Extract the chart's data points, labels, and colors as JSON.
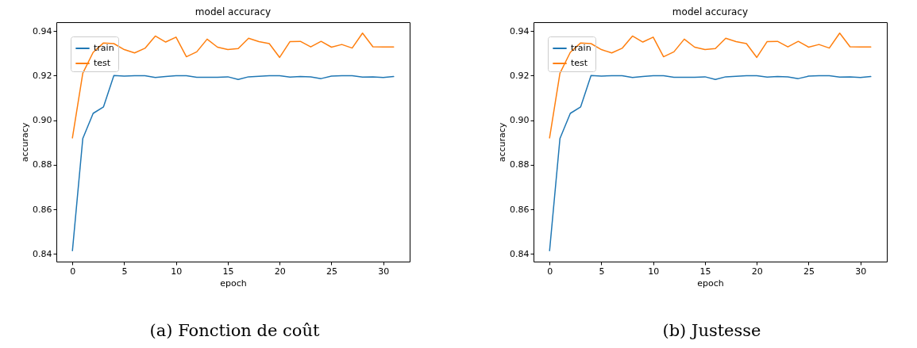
{
  "chart_data": [
    {
      "type": "line",
      "title": "model accuracy",
      "xlabel": "epoch",
      "ylabel": "accuracy",
      "annotations": [
        "(a) Fonction de coût"
      ],
      "x": [
        0,
        1,
        2,
        3,
        4,
        5,
        6,
        7,
        8,
        9,
        10,
        11,
        12,
        13,
        14,
        15,
        16,
        17,
        18,
        19,
        20,
        21,
        22,
        23,
        24,
        25,
        26,
        27,
        28,
        29,
        30,
        31
      ],
      "series": [
        {
          "name": "train",
          "color": "#1f77b4",
          "values": [
            0.8415,
            0.8918,
            0.9031,
            0.906,
            0.9201,
            0.9198,
            0.92,
            0.92,
            0.9192,
            0.9196,
            0.92,
            0.92,
            0.9193,
            0.9193,
            0.9193,
            0.9195,
            0.9183,
            0.9195,
            0.9197,
            0.92,
            0.92,
            0.9194,
            0.9196,
            0.9195,
            0.9187,
            0.9198,
            0.92,
            0.92,
            0.9194,
            0.9195,
            0.9192,
            0.9196
          ]
        },
        {
          "name": "test",
          "color": "#ff7f0e",
          "values": [
            0.8921,
            0.9211,
            0.9305,
            0.9347,
            0.9344,
            0.9317,
            0.9302,
            0.9323,
            0.9378,
            0.9351,
            0.9373,
            0.9285,
            0.9307,
            0.9364,
            0.9328,
            0.9317,
            0.9322,
            0.9368,
            0.9353,
            0.9344,
            0.9282,
            0.9353,
            0.9354,
            0.9329,
            0.9354,
            0.9328,
            0.934,
            0.9324,
            0.9391,
            0.933,
            0.9329,
            0.9329
          ]
        }
      ],
      "xlim": [
        -1.55,
        32.55
      ],
      "xticks": [
        0,
        5,
        10,
        15,
        20,
        25,
        30
      ],
      "ylim": [
        0.8366,
        0.944
      ],
      "yticks": [
        {
          "value": 0.84,
          "label": "0.84"
        },
        {
          "value": 0.86,
          "label": "0.86"
        },
        {
          "value": 0.88,
          "label": "0.88"
        },
        {
          "value": 0.9,
          "label": "0.90"
        },
        {
          "value": 0.92,
          "label": "0.92"
        },
        {
          "value": 0.94,
          "label": "0.94"
        }
      ],
      "legend": "top left"
    },
    {
      "type": "line",
      "title": "model accuracy",
      "xlabel": "epoch",
      "ylabel": "accuracy",
      "annotations": [
        "(b) Justesse"
      ],
      "x": [
        0,
        1,
        2,
        3,
        4,
        5,
        6,
        7,
        8,
        9,
        10,
        11,
        12,
        13,
        14,
        15,
        16,
        17,
        18,
        19,
        20,
        21,
        22,
        23,
        24,
        25,
        26,
        27,
        28,
        29,
        30,
        31
      ],
      "series": [
        {
          "name": "train",
          "color": "#1f77b4",
          "values": [
            0.8415,
            0.8918,
            0.9031,
            0.906,
            0.9201,
            0.9198,
            0.92,
            0.92,
            0.9192,
            0.9196,
            0.92,
            0.92,
            0.9193,
            0.9193,
            0.9193,
            0.9195,
            0.9183,
            0.9195,
            0.9197,
            0.92,
            0.92,
            0.9194,
            0.9196,
            0.9195,
            0.9187,
            0.9198,
            0.92,
            0.92,
            0.9194,
            0.9195,
            0.9192,
            0.9196
          ]
        },
        {
          "name": "test",
          "color": "#ff7f0e",
          "values": [
            0.8921,
            0.9211,
            0.9305,
            0.9347,
            0.9344,
            0.9317,
            0.9302,
            0.9323,
            0.9378,
            0.9351,
            0.9373,
            0.9285,
            0.9307,
            0.9364,
            0.9328,
            0.9317,
            0.9322,
            0.9368,
            0.9353,
            0.9344,
            0.9282,
            0.9353,
            0.9354,
            0.9329,
            0.9354,
            0.9328,
            0.934,
            0.9324,
            0.9391,
            0.933,
            0.9329,
            0.9329
          ]
        }
      ],
      "xlim": [
        -1.55,
        32.55
      ],
      "xticks": [
        0,
        5,
        10,
        15,
        20,
        25,
        30
      ],
      "ylim": [
        0.8366,
        0.944
      ],
      "yticks": [
        {
          "value": 0.84,
          "label": "0.84"
        },
        {
          "value": 0.86,
          "label": "0.86"
        },
        {
          "value": 0.88,
          "label": "0.88"
        },
        {
          "value": 0.9,
          "label": "0.90"
        },
        {
          "value": 0.92,
          "label": "0.92"
        },
        {
          "value": 0.94,
          "label": "0.94"
        }
      ],
      "legend": "top left"
    }
  ]
}
